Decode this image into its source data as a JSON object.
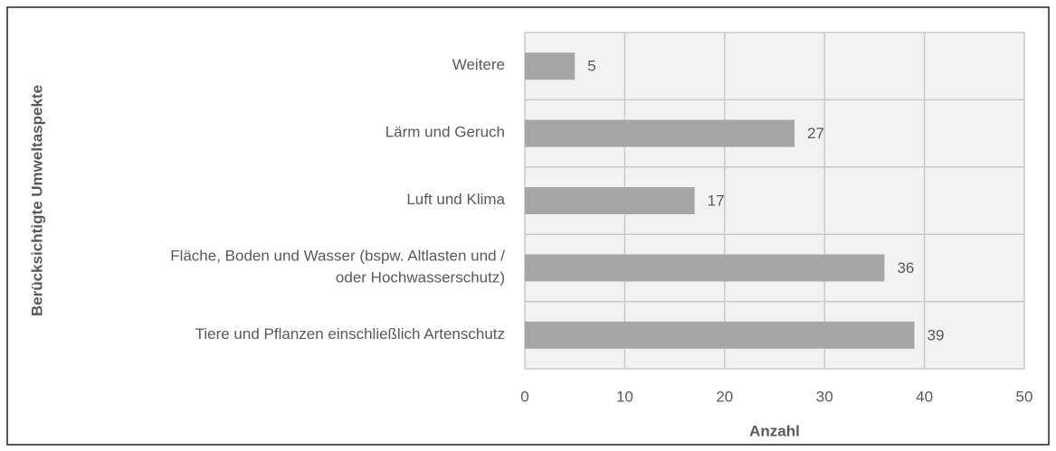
{
  "chart_data": {
    "type": "bar",
    "orientation": "horizontal",
    "categories": [
      "Weitere",
      "Lärm und Geruch",
      "Luft und Klima",
      "Fläche, Boden und Wasser (bspw. Altlasten und /\noder Hochwasserschutz)",
      "Tiere und Pflanzen einschließlich Artenschutz"
    ],
    "values": [
      5,
      27,
      17,
      36,
      39
    ],
    "color": "#a6a6a6",
    "xlim": [
      0,
      50
    ],
    "xticks": [
      0,
      10,
      20,
      30,
      40,
      50
    ],
    "grid": true,
    "xlabel": "Anzahl",
    "ylabel": "Berücksichtigte Umweltaspekte"
  }
}
